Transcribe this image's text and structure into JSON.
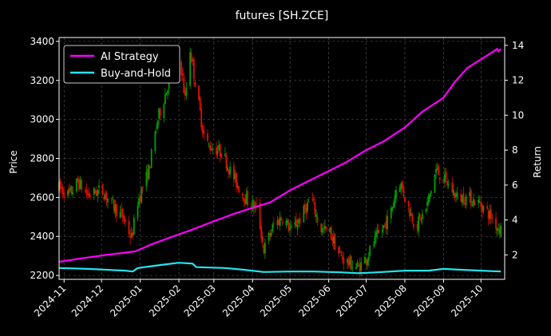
{
  "chart_data": {
    "type": "candlestick+line",
    "title": "futures [SH.ZCE]",
    "ylabel_left": "Price",
    "ylabel_right": "Return",
    "xlabel": "",
    "ylim_left": [
      2180,
      3420
    ],
    "ylim_right": [
      0.6,
      14.45
    ],
    "xlim": [
      "2024-10-28",
      "2025-10-20"
    ],
    "grid": true,
    "legend_position": "top-left",
    "x_ticks": [
      "2024-11",
      "2024-12",
      "2025-01",
      "2025-02",
      "2025-03",
      "2025-04",
      "2025-05",
      "2025-06",
      "2025-07",
      "2025-08",
      "2025-09",
      "2025-10"
    ],
    "y_ticks_left": [
      2200,
      2400,
      2600,
      2800,
      3000,
      3200,
      3400
    ],
    "y_ticks_right": [
      2,
      4,
      6,
      8,
      10,
      12,
      14
    ],
    "colors": {
      "up": "#00a000",
      "down": "#e01000",
      "ai": "#ff00ff",
      "bh": "#22e5f0",
      "grid": "#5a5a5a",
      "background": "#000000"
    },
    "price_path": [
      [
        "2024-10-28",
        2650
      ],
      [
        "2024-11-05",
        2610
      ],
      [
        "2024-11-12",
        2680
      ],
      [
        "2024-11-20",
        2610
      ],
      [
        "2024-12-01",
        2640
      ],
      [
        "2024-12-10",
        2560
      ],
      [
        "2024-12-18",
        2500
      ],
      [
        "2024-12-25",
        2390
      ],
      [
        "2024-12-30",
        2580
      ],
      [
        "2025-01-08",
        2740
      ],
      [
        "2025-01-15",
        3000
      ],
      [
        "2025-01-22",
        3150
      ],
      [
        "2025-01-27",
        3280
      ],
      [
        "2025-02-02",
        3310
      ],
      [
        "2025-02-06",
        3100
      ],
      [
        "2025-02-10",
        3360
      ],
      [
        "2025-02-15",
        3150
      ],
      [
        "2025-02-22",
        2880
      ],
      [
        "2025-03-01",
        2850
      ],
      [
        "2025-03-08",
        2830
      ],
      [
        "2025-03-15",
        2720
      ],
      [
        "2025-03-22",
        2640
      ],
      [
        "2025-03-28",
        2580
      ],
      [
        "2025-04-05",
        2540
      ],
      [
        "2025-04-10",
        2330
      ],
      [
        "2025-04-18",
        2460
      ],
      [
        "2025-04-25",
        2500
      ],
      [
        "2025-05-02",
        2430
      ],
      [
        "2025-05-10",
        2500
      ],
      [
        "2025-05-18",
        2600
      ],
      [
        "2025-05-25",
        2440
      ],
      [
        "2025-06-02",
        2420
      ],
      [
        "2025-06-10",
        2300
      ],
      [
        "2025-06-18",
        2260
      ],
      [
        "2025-06-25",
        2240
      ],
      [
        "2025-07-02",
        2300
      ],
      [
        "2025-07-10",
        2400
      ],
      [
        "2025-07-20",
        2500
      ],
      [
        "2025-07-27",
        2700
      ],
      [
        "2025-08-03",
        2560
      ],
      [
        "2025-08-10",
        2450
      ],
      [
        "2025-08-18",
        2540
      ],
      [
        "2025-08-26",
        2740
      ],
      [
        "2025-09-03",
        2680
      ],
      [
        "2025-09-12",
        2600
      ],
      [
        "2025-09-20",
        2600
      ],
      [
        "2025-09-30",
        2570
      ],
      [
        "2025-10-08",
        2510
      ],
      [
        "2025-10-14",
        2450
      ],
      [
        "2025-10-17",
        2440
      ]
    ],
    "series": [
      {
        "name": "AI Strategy",
        "axis": "right",
        "points": [
          [
            "2024-10-28",
            1.6
          ],
          [
            "2024-11-15",
            1.8
          ],
          [
            "2024-12-05",
            2.0
          ],
          [
            "2024-12-28",
            2.2
          ],
          [
            "2025-01-10",
            2.6
          ],
          [
            "2025-01-25",
            3.0
          ],
          [
            "2025-02-10",
            3.4
          ],
          [
            "2025-02-28",
            3.9
          ],
          [
            "2025-03-15",
            4.3
          ],
          [
            "2025-04-01",
            4.7
          ],
          [
            "2025-04-15",
            5.0
          ],
          [
            "2025-05-01",
            5.7
          ],
          [
            "2025-05-15",
            6.2
          ],
          [
            "2025-06-01",
            6.8
          ],
          [
            "2025-06-15",
            7.3
          ],
          [
            "2025-07-01",
            8.0
          ],
          [
            "2025-07-15",
            8.5
          ],
          [
            "2025-08-01",
            9.3
          ],
          [
            "2025-08-15",
            10.2
          ],
          [
            "2025-09-01",
            11.0
          ],
          [
            "2025-09-10",
            11.9
          ],
          [
            "2025-09-20",
            12.7
          ],
          [
            "2025-10-01",
            13.2
          ],
          [
            "2025-10-10",
            13.6
          ],
          [
            "2025-10-14",
            13.8
          ],
          [
            "2025-10-15",
            13.65
          ],
          [
            "2025-10-17",
            13.8
          ]
        ]
      },
      {
        "name": "Buy-and-Hold",
        "axis": "right",
        "points": [
          [
            "2024-10-28",
            1.25
          ],
          [
            "2024-11-20",
            1.2
          ],
          [
            "2024-12-20",
            1.1
          ],
          [
            "2024-12-26",
            1.05
          ],
          [
            "2024-12-30",
            1.25
          ],
          [
            "2025-01-15",
            1.4
          ],
          [
            "2025-02-01",
            1.55
          ],
          [
            "2025-02-12",
            1.5
          ],
          [
            "2025-02-15",
            1.3
          ],
          [
            "2025-03-10",
            1.25
          ],
          [
            "2025-03-25",
            1.15
          ],
          [
            "2025-04-10",
            1.02
          ],
          [
            "2025-05-01",
            1.05
          ],
          [
            "2025-05-20",
            1.05
          ],
          [
            "2025-06-10",
            1.0
          ],
          [
            "2025-06-25",
            0.95
          ],
          [
            "2025-07-10",
            1.0
          ],
          [
            "2025-08-01",
            1.1
          ],
          [
            "2025-08-20",
            1.1
          ],
          [
            "2025-09-01",
            1.2
          ],
          [
            "2025-09-15",
            1.15
          ],
          [
            "2025-10-01",
            1.1
          ],
          [
            "2025-10-17",
            1.05
          ]
        ]
      }
    ]
  }
}
